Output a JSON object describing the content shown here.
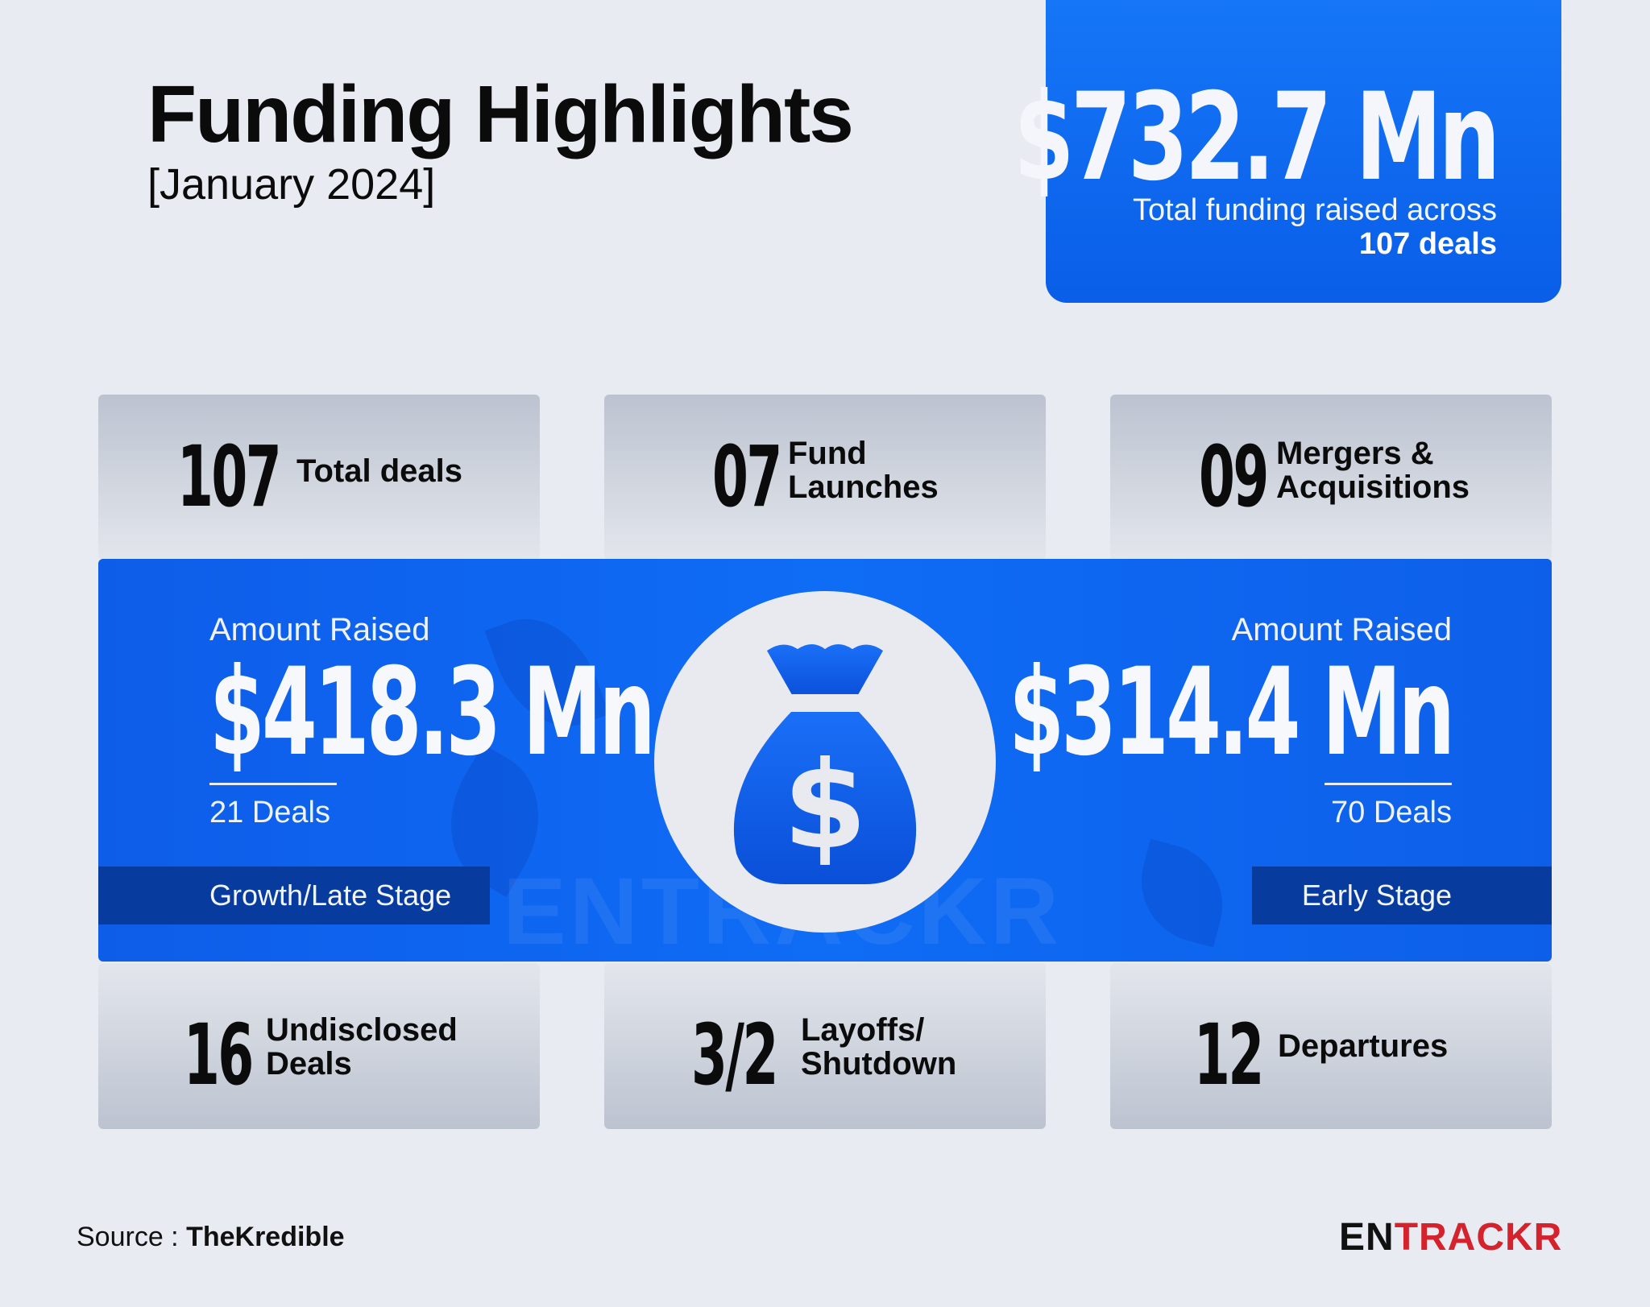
{
  "header": {
    "title": "Funding Highlights",
    "subtitle": "[January 2024]"
  },
  "total": {
    "amount": "$732.7 Mn",
    "description": "Total funding raised across",
    "deals": "107 deals"
  },
  "top_stats": [
    {
      "value": "107",
      "label": "Total deals"
    },
    {
      "value": "07",
      "label_line1": "Fund",
      "label_line2": "Launches"
    },
    {
      "value": "09",
      "label_line1": "Mergers &",
      "label_line2": "Acquisitions"
    }
  ],
  "band": {
    "left": {
      "label": "Amount Raised",
      "amount": "$418.3 Mn",
      "deals": "21 Deals",
      "stage": "Growth/Late Stage"
    },
    "right": {
      "label": "Amount Raised",
      "amount": "$314.4 Mn",
      "deals": "70 Deals",
      "stage": "Early Stage"
    },
    "watermark": "ENTRACKR",
    "icon": "money-bag-icon"
  },
  "bottom_stats": [
    {
      "value": "16",
      "label_line1": "Undisclosed",
      "label_line2": "Deals"
    },
    {
      "value": "3/2",
      "label_line1": "Layoffs/",
      "label_line2": "Shutdown"
    },
    {
      "value": "12",
      "label": "Departures"
    }
  ],
  "footer": {
    "source_prefix": "Source : ",
    "source_name": "TheKredible",
    "brand_part1": "EN",
    "brand_part2": "TRACKR"
  },
  "colors": {
    "background": "#e8ebf1",
    "accent_blue": "#0f6cf5",
    "stage_tag": "#073c9e",
    "brand_red": "#d4232c"
  }
}
